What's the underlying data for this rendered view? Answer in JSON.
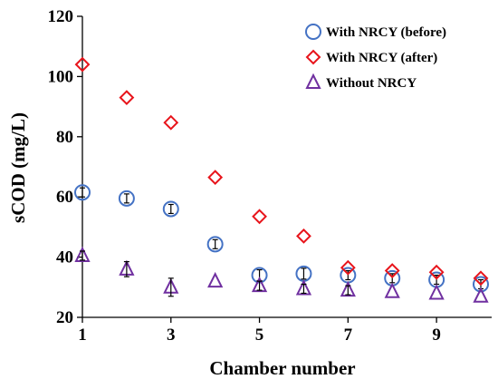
{
  "chart_data": {
    "type": "scatter",
    "xlabel": "Chamber number",
    "ylabel": "sCOD (mg/L)",
    "xlim": [
      1,
      10
    ],
    "ylim": [
      20,
      120
    ],
    "x_ticks": [
      1,
      3,
      5,
      7,
      9
    ],
    "y_ticks": [
      20,
      40,
      60,
      80,
      100,
      120
    ],
    "grid": false,
    "legend_position": "top-right",
    "series": [
      {
        "name": "With NRCY (before)",
        "marker": "circle",
        "color": "#4472C4",
        "x": [
          1,
          2,
          3,
          4,
          5,
          6,
          7,
          8,
          9,
          10
        ],
        "y": [
          61.5,
          59.5,
          56,
          44.3,
          34,
          34.5,
          34,
          33,
          32.5,
          31
        ],
        "error": [
          1.5,
          1.5,
          1.5,
          1.5,
          1.8,
          1.8,
          1.5,
          1.5,
          1.5,
          1.5
        ]
      },
      {
        "name": "With NRCY (after)",
        "marker": "diamond",
        "color": "#E8141B",
        "x": [
          1,
          2,
          3,
          4,
          5,
          6,
          7,
          8,
          9,
          10
        ],
        "y": [
          104,
          93,
          84.7,
          66.5,
          53.5,
          47,
          36.5,
          35.5,
          35,
          33
        ],
        "error": [
          0,
          0,
          0,
          0,
          0,
          0,
          0,
          0,
          0,
          0
        ]
      },
      {
        "name": "Without NRCY",
        "marker": "triangle",
        "color": "#7030A0",
        "x": [
          1,
          2,
          3,
          4,
          5,
          6,
          7,
          8,
          9,
          10
        ],
        "y": [
          40.5,
          36,
          30,
          32,
          30.5,
          29.5,
          29,
          28.5,
          28,
          27
        ],
        "error": [
          1.5,
          2.5,
          3,
          0,
          1.5,
          1.5,
          1.5,
          0,
          0,
          0
        ]
      }
    ]
  }
}
